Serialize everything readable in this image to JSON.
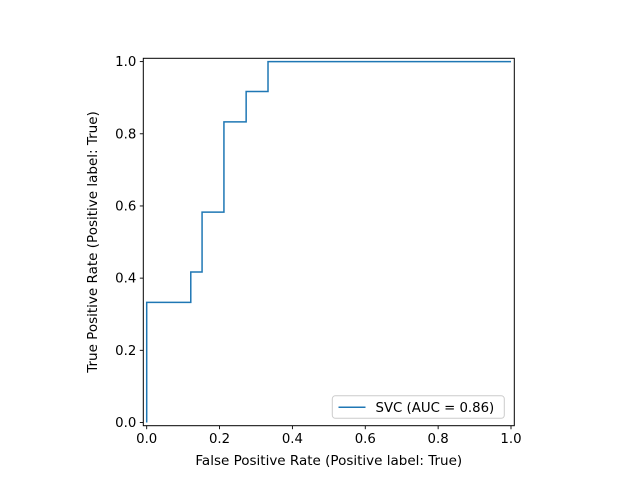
{
  "figure": {
    "background_color": "#ffffff",
    "frame_color": "#000000",
    "text_color": "#000000"
  },
  "chart_data": {
    "type": "line",
    "subtype": "roc-curve-step",
    "title": "",
    "xlabel": "False Positive Rate (Positive label: True)",
    "ylabel": "True Positive Rate (Positive label: True)",
    "xlim": [
      0.0,
      1.0
    ],
    "ylim": [
      0.0,
      1.0
    ],
    "grid": false,
    "x_ticks": [
      0.0,
      0.2,
      0.4,
      0.6,
      0.8,
      1.0
    ],
    "x_tick_labels": [
      "0.0",
      "0.2",
      "0.4",
      "0.6",
      "0.8",
      "1.0"
    ],
    "y_ticks": [
      0.0,
      0.2,
      0.4,
      0.6,
      0.8,
      1.0
    ],
    "y_tick_labels": [
      "0.0",
      "0.2",
      "0.4",
      "0.6",
      "0.8",
      "1.0"
    ],
    "series": [
      {
        "name": "SVC (AUC = 0.86)",
        "color": "#1f77b4",
        "auc": 0.86,
        "points": [
          [
            0.0,
            0.0
          ],
          [
            0.0,
            0.333
          ],
          [
            0.121,
            0.333
          ],
          [
            0.121,
            0.417
          ],
          [
            0.152,
            0.417
          ],
          [
            0.152,
            0.583
          ],
          [
            0.212,
            0.583
          ],
          [
            0.212,
            0.833
          ],
          [
            0.273,
            0.833
          ],
          [
            0.273,
            0.917
          ],
          [
            0.333,
            0.917
          ],
          [
            0.333,
            1.0
          ],
          [
            1.0,
            1.0
          ]
        ]
      }
    ],
    "legend": {
      "position": "lower right",
      "border_color": "#cccccc",
      "background_color": "#ffffff",
      "entries": [
        {
          "label": "SVC (AUC = 0.86)",
          "color": "#1f77b4"
        }
      ]
    }
  }
}
